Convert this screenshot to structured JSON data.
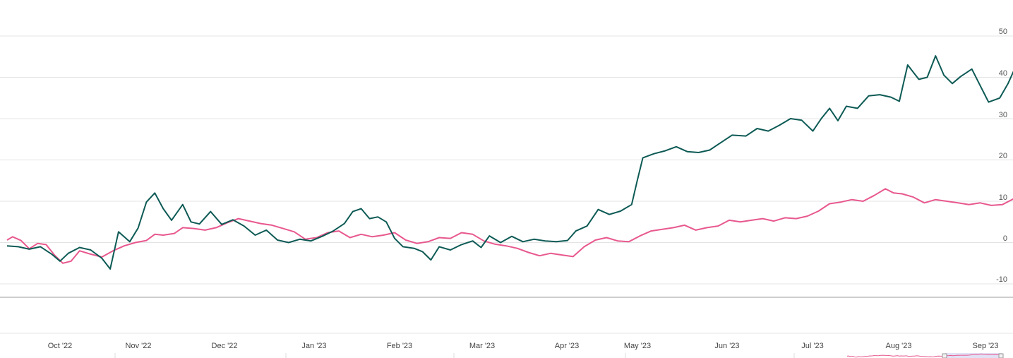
{
  "colors": {
    "series_primary": "#0d5a55",
    "series_secondary": "#e8588e",
    "grid": "#e4e4e4",
    "navigator_mask": "#c8c8ee"
  },
  "chart_data": {
    "type": "line",
    "title": "",
    "xlabel": "",
    "ylabel": "",
    "ylim": [
      -12,
      52
    ],
    "y_ticks": [
      "50",
      "40",
      "30",
      "20",
      "10",
      "0",
      "-10"
    ],
    "x_ticks": [
      "Oct '22",
      "Nov '22",
      "Dec '22",
      "Jan '23",
      "Feb '23",
      "Mar '23",
      "Apr '23",
      "May '23",
      "Jun '23",
      "Jul '23",
      "Aug '23",
      "Sep '23"
    ],
    "grid": true,
    "navigator": true,
    "series": [
      {
        "color": "#0d5a55",
        "points": [
          [
            "2022-09-12",
            -0.8
          ],
          [
            "2022-09-16",
            -1.0
          ],
          [
            "2022-09-20",
            -1.6
          ],
          [
            "2022-09-24",
            -1.0
          ],
          [
            "2022-09-28",
            -2.8
          ],
          [
            "2022-10-01",
            -4.5
          ],
          [
            "2022-10-04",
            -2.6
          ],
          [
            "2022-10-08",
            -1.2
          ],
          [
            "2022-10-12",
            -1.8
          ],
          [
            "2022-10-16",
            -3.8
          ],
          [
            "2022-10-19",
            -6.4
          ],
          [
            "2022-10-22",
            2.6
          ],
          [
            "2022-10-26",
            0.2
          ],
          [
            "2022-10-29",
            3.5
          ],
          [
            "2022-11-01",
            9.8
          ],
          [
            "2022-11-04",
            12.0
          ],
          [
            "2022-11-07",
            8.2
          ],
          [
            "2022-11-10",
            5.4
          ],
          [
            "2022-11-14",
            9.2
          ],
          [
            "2022-11-17",
            5.0
          ],
          [
            "2022-11-20",
            4.5
          ],
          [
            "2022-11-24",
            7.5
          ],
          [
            "2022-11-28",
            4.4
          ],
          [
            "2022-12-02",
            5.5
          ],
          [
            "2022-12-06",
            4.0
          ],
          [
            "2022-12-10",
            1.8
          ],
          [
            "2022-12-14",
            3.0
          ],
          [
            "2022-12-18",
            0.6
          ],
          [
            "2022-12-22",
            0.0
          ],
          [
            "2022-12-26",
            0.8
          ],
          [
            "2022-12-30",
            0.4
          ],
          [
            "2023-01-03",
            1.5
          ],
          [
            "2023-01-07",
            2.8
          ],
          [
            "2023-01-11",
            4.6
          ],
          [
            "2023-01-14",
            7.5
          ],
          [
            "2023-01-17",
            8.2
          ],
          [
            "2023-01-20",
            5.8
          ],
          [
            "2023-01-23",
            6.2
          ],
          [
            "2023-01-26",
            5.0
          ],
          [
            "2023-01-29",
            1.0
          ],
          [
            "2023-02-01",
            -1.0
          ],
          [
            "2023-02-05",
            -1.4
          ],
          [
            "2023-02-08",
            -2.2
          ],
          [
            "2023-02-11",
            -4.2
          ],
          [
            "2023-02-14",
            -1.0
          ],
          [
            "2023-02-18",
            -1.8
          ],
          [
            "2023-02-22",
            -0.5
          ],
          [
            "2023-02-26",
            0.4
          ],
          [
            "2023-03-01",
            -1.2
          ],
          [
            "2023-03-04",
            1.6
          ],
          [
            "2023-03-08",
            0.0
          ],
          [
            "2023-03-12",
            1.5
          ],
          [
            "2023-03-16",
            0.2
          ],
          [
            "2023-03-20",
            0.8
          ],
          [
            "2023-03-24",
            0.4
          ],
          [
            "2023-03-28",
            0.2
          ],
          [
            "2023-04-01",
            0.5
          ],
          [
            "2023-04-04",
            2.8
          ],
          [
            "2023-04-08",
            4.0
          ],
          [
            "2023-04-12",
            8.0
          ],
          [
            "2023-04-16",
            6.8
          ],
          [
            "2023-04-20",
            7.6
          ],
          [
            "2023-04-24",
            9.2
          ],
          [
            "2023-04-26",
            15.0
          ],
          [
            "2023-04-28",
            20.5
          ],
          [
            "2023-05-02",
            21.5
          ],
          [
            "2023-05-06",
            22.2
          ],
          [
            "2023-05-10",
            23.2
          ],
          [
            "2023-05-14",
            22.0
          ],
          [
            "2023-05-18",
            21.8
          ],
          [
            "2023-05-22",
            22.4
          ],
          [
            "2023-05-26",
            24.2
          ],
          [
            "2023-05-30",
            26.0
          ],
          [
            "2023-06-04",
            25.8
          ],
          [
            "2023-06-08",
            27.6
          ],
          [
            "2023-06-12",
            27.0
          ],
          [
            "2023-06-16",
            28.4
          ],
          [
            "2023-06-20",
            30.0
          ],
          [
            "2023-06-24",
            29.6
          ],
          [
            "2023-06-28",
            27.0
          ],
          [
            "2023-07-01",
            30.0
          ],
          [
            "2023-07-04",
            32.5
          ],
          [
            "2023-07-07",
            29.5
          ],
          [
            "2023-07-10",
            33.0
          ],
          [
            "2023-07-14",
            32.5
          ],
          [
            "2023-07-18",
            35.5
          ],
          [
            "2023-07-22",
            35.8
          ],
          [
            "2023-07-26",
            35.2
          ],
          [
            "2023-07-29",
            34.2
          ],
          [
            "2023-08-01",
            43.0
          ],
          [
            "2023-08-05",
            39.5
          ],
          [
            "2023-08-08",
            40.0
          ],
          [
            "2023-08-11",
            45.2
          ],
          [
            "2023-08-14",
            40.5
          ],
          [
            "2023-08-17",
            38.5
          ],
          [
            "2023-08-20",
            40.2
          ],
          [
            "2023-08-24",
            42.0
          ],
          [
            "2023-08-27",
            38.0
          ],
          [
            "2023-08-30",
            34.0
          ],
          [
            "2023-09-03",
            35.0
          ],
          [
            "2023-09-06",
            38.5
          ],
          [
            "2023-09-08",
            41.5
          ],
          [
            "2023-09-09",
            46.0
          ],
          [
            "2023-09-12",
            46.8
          ]
        ]
      },
      {
        "color": "#e8588e",
        "points": [
          [
            "2022-09-12",
            0.6
          ],
          [
            "2022-09-14",
            1.4
          ],
          [
            "2022-09-17",
            0.5
          ],
          [
            "2022-09-20",
            -1.5
          ],
          [
            "2022-09-23",
            -0.2
          ],
          [
            "2022-09-26",
            -0.5
          ],
          [
            "2022-09-29",
            -3.0
          ],
          [
            "2022-10-02",
            -5.0
          ],
          [
            "2022-10-05",
            -4.5
          ],
          [
            "2022-10-08",
            -2.0
          ],
          [
            "2022-10-12",
            -2.8
          ],
          [
            "2022-10-16",
            -3.5
          ],
          [
            "2022-10-20",
            -2.0
          ],
          [
            "2022-10-24",
            -0.8
          ],
          [
            "2022-10-28",
            0.0
          ],
          [
            "2022-11-01",
            0.5
          ],
          [
            "2022-11-04",
            2.0
          ],
          [
            "2022-11-07",
            1.8
          ],
          [
            "2022-11-11",
            2.2
          ],
          [
            "2022-11-14",
            3.6
          ],
          [
            "2022-11-18",
            3.4
          ],
          [
            "2022-11-22",
            3.0
          ],
          [
            "2022-11-26",
            3.6
          ],
          [
            "2022-11-30",
            4.8
          ],
          [
            "2022-12-04",
            5.8
          ],
          [
            "2022-12-08",
            5.2
          ],
          [
            "2022-12-12",
            4.6
          ],
          [
            "2022-12-16",
            4.2
          ],
          [
            "2022-12-20",
            3.4
          ],
          [
            "2022-12-24",
            2.6
          ],
          [
            "2022-12-28",
            0.8
          ],
          [
            "2023-01-01",
            1.2
          ],
          [
            "2023-01-05",
            2.4
          ],
          [
            "2023-01-09",
            2.8
          ],
          [
            "2023-01-13",
            1.2
          ],
          [
            "2023-01-17",
            2.0
          ],
          [
            "2023-01-21",
            1.4
          ],
          [
            "2023-01-25",
            1.8
          ],
          [
            "2023-01-29",
            2.4
          ],
          [
            "2023-02-02",
            0.6
          ],
          [
            "2023-02-06",
            -0.2
          ],
          [
            "2023-02-10",
            0.2
          ],
          [
            "2023-02-14",
            1.2
          ],
          [
            "2023-02-18",
            1.0
          ],
          [
            "2023-02-22",
            2.4
          ],
          [
            "2023-02-26",
            2.0
          ],
          [
            "2023-03-02",
            0.4
          ],
          [
            "2023-03-06",
            -0.4
          ],
          [
            "2023-03-10",
            -0.8
          ],
          [
            "2023-03-14",
            -1.4
          ],
          [
            "2023-03-18",
            -2.4
          ],
          [
            "2023-03-22",
            -3.2
          ],
          [
            "2023-03-26",
            -2.6
          ],
          [
            "2023-03-30",
            -3.0
          ],
          [
            "2023-04-03",
            -3.4
          ],
          [
            "2023-04-07",
            -1.0
          ],
          [
            "2023-04-11",
            0.6
          ],
          [
            "2023-04-15",
            1.2
          ],
          [
            "2023-04-19",
            0.4
          ],
          [
            "2023-04-23",
            0.2
          ],
          [
            "2023-04-27",
            1.6
          ],
          [
            "2023-05-01",
            2.8
          ],
          [
            "2023-05-05",
            3.2
          ],
          [
            "2023-05-09",
            3.6
          ],
          [
            "2023-05-13",
            4.2
          ],
          [
            "2023-05-17",
            3.0
          ],
          [
            "2023-05-21",
            3.6
          ],
          [
            "2023-05-25",
            4.0
          ],
          [
            "2023-05-29",
            5.4
          ],
          [
            "2023-06-02",
            5.0
          ],
          [
            "2023-06-06",
            5.4
          ],
          [
            "2023-06-10",
            5.8
          ],
          [
            "2023-06-14",
            5.2
          ],
          [
            "2023-06-18",
            6.0
          ],
          [
            "2023-06-22",
            5.8
          ],
          [
            "2023-06-26",
            6.4
          ],
          [
            "2023-06-30",
            7.6
          ],
          [
            "2023-07-04",
            9.4
          ],
          [
            "2023-07-08",
            9.8
          ],
          [
            "2023-07-12",
            10.4
          ],
          [
            "2023-07-16",
            10.0
          ],
          [
            "2023-07-20",
            11.4
          ],
          [
            "2023-07-24",
            13.0
          ],
          [
            "2023-07-27",
            12.0
          ],
          [
            "2023-07-30",
            11.8
          ],
          [
            "2023-08-03",
            11.0
          ],
          [
            "2023-08-07",
            9.6
          ],
          [
            "2023-08-11",
            10.4
          ],
          [
            "2023-08-15",
            10.0
          ],
          [
            "2023-08-19",
            9.6
          ],
          [
            "2023-08-23",
            9.2
          ],
          [
            "2023-08-27",
            9.6
          ],
          [
            "2023-08-31",
            9.0
          ],
          [
            "2023-09-04",
            9.2
          ],
          [
            "2023-09-08",
            10.6
          ],
          [
            "2023-09-12",
            11.4
          ]
        ]
      }
    ]
  }
}
